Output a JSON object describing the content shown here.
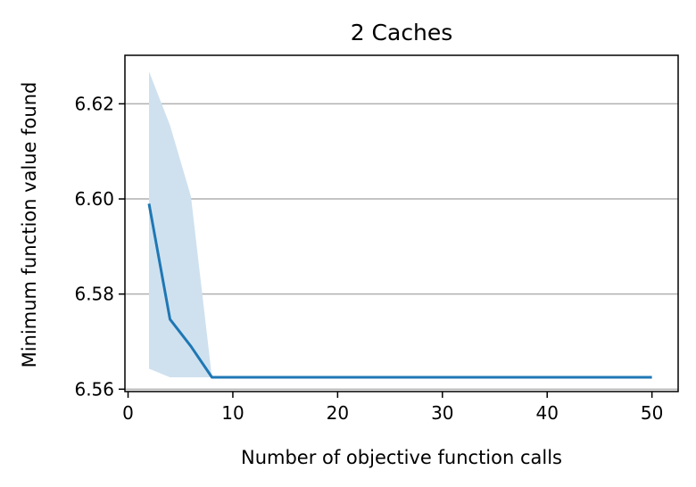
{
  "chart_data": {
    "type": "line",
    "title": "2 Caches",
    "xlabel": "Number of objective function calls",
    "ylabel": "Minimum function value found",
    "xlim": [
      -0.3,
      52.5
    ],
    "ylim": [
      6.5595,
      6.6302
    ],
    "x_ticks": [
      0,
      10,
      20,
      30,
      40,
      50
    ],
    "y_ticks": [
      6.56,
      6.58,
      6.6,
      6.62
    ],
    "y_tick_labels": [
      "6.56",
      "6.58",
      "6.60",
      "6.62"
    ],
    "grid": "y",
    "legend": "none",
    "series": [
      {
        "x": [
          2,
          4,
          6,
          8,
          10,
          15,
          20,
          25,
          30,
          35,
          40,
          45,
          50
        ],
        "values": [
          6.599,
          6.5747,
          6.569,
          6.5625,
          6.5625,
          6.5625,
          6.5625,
          6.5625,
          6.5625,
          6.5625,
          6.5625,
          6.5625,
          6.5625
        ],
        "upper": [
          6.6268,
          6.6155,
          6.6005,
          6.5625,
          6.5625,
          6.5625,
          6.5625,
          6.5625,
          6.5625,
          6.5625,
          6.5625,
          6.5625,
          6.5625
        ],
        "lower": [
          6.5643,
          6.5625,
          6.5625,
          6.5625,
          6.5625,
          6.5625,
          6.5625,
          6.5625,
          6.5625,
          6.5625,
          6.5625,
          6.5625,
          6.5625
        ],
        "color": "#1f77b4",
        "band_color": "#cfe1ef"
      }
    ]
  }
}
